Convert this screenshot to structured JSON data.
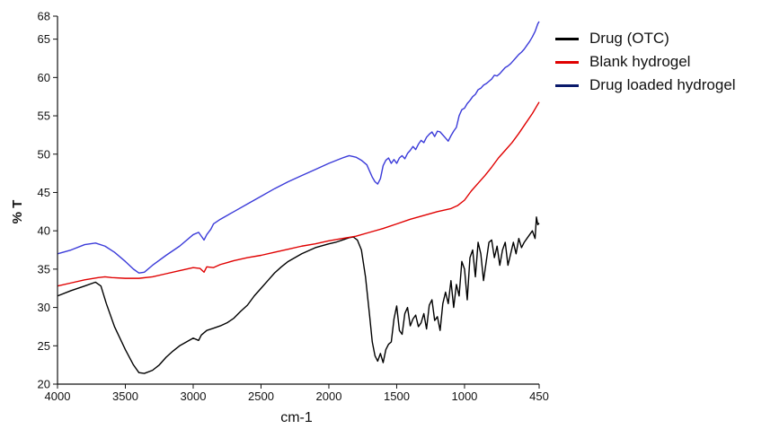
{
  "chart_data": {
    "type": "line",
    "title": "",
    "xlabel": "cm-1",
    "ylabel": "% T",
    "xlim": [
      4000,
      450
    ],
    "ylim": [
      20,
      68
    ],
    "x_reversed": true,
    "x_ticks": [
      4000,
      3500,
      3000,
      2500,
      2000,
      1500,
      1000,
      450
    ],
    "y_ticks": [
      20,
      25,
      30,
      35,
      40,
      45,
      50,
      55,
      60,
      65,
      68
    ],
    "grid": false,
    "legend_position": "top-right",
    "series": [
      {
        "name": "Drug (OTC)",
        "color": "#000000",
        "points": [
          [
            4000,
            31.5
          ],
          [
            3900,
            32.2
          ],
          [
            3800,
            32.8
          ],
          [
            3720,
            33.3
          ],
          [
            3680,
            32.8
          ],
          [
            3640,
            30.5
          ],
          [
            3580,
            27.5
          ],
          [
            3500,
            24.5
          ],
          [
            3440,
            22.5
          ],
          [
            3400,
            21.5
          ],
          [
            3360,
            21.4
          ],
          [
            3300,
            21.8
          ],
          [
            3250,
            22.5
          ],
          [
            3200,
            23.5
          ],
          [
            3150,
            24.3
          ],
          [
            3100,
            25
          ],
          [
            3050,
            25.5
          ],
          [
            3000,
            26
          ],
          [
            2960,
            25.7
          ],
          [
            2940,
            26.4
          ],
          [
            2900,
            27
          ],
          [
            2850,
            27.3
          ],
          [
            2800,
            27.6
          ],
          [
            2750,
            28
          ],
          [
            2700,
            28.6
          ],
          [
            2650,
            29.5
          ],
          [
            2600,
            30.3
          ],
          [
            2550,
            31.5
          ],
          [
            2500,
            32.5
          ],
          [
            2450,
            33.5
          ],
          [
            2400,
            34.5
          ],
          [
            2350,
            35.3
          ],
          [
            2300,
            36
          ],
          [
            2200,
            37
          ],
          [
            2100,
            37.8
          ],
          [
            2000,
            38.3
          ],
          [
            1950,
            38.5
          ],
          [
            1900,
            38.8
          ],
          [
            1850,
            39.1
          ],
          [
            1820,
            39.2
          ],
          [
            1790,
            38.8
          ],
          [
            1760,
            37.5
          ],
          [
            1730,
            34
          ],
          [
            1700,
            29
          ],
          [
            1680,
            25.5
          ],
          [
            1660,
            23.7
          ],
          [
            1640,
            23
          ],
          [
            1620,
            24
          ],
          [
            1600,
            22.8
          ],
          [
            1580,
            24.5
          ],
          [
            1560,
            25.2
          ],
          [
            1540,
            25.5
          ],
          [
            1520,
            28.5
          ],
          [
            1500,
            30.2
          ],
          [
            1480,
            27
          ],
          [
            1460,
            26.5
          ],
          [
            1440,
            29.2
          ],
          [
            1420,
            30
          ],
          [
            1400,
            27.6
          ],
          [
            1380,
            28.5
          ],
          [
            1360,
            29
          ],
          [
            1340,
            27.5
          ],
          [
            1320,
            28
          ],
          [
            1300,
            29.2
          ],
          [
            1280,
            27.2
          ],
          [
            1260,
            30.3
          ],
          [
            1240,
            31
          ],
          [
            1220,
            28.3
          ],
          [
            1200,
            28.8
          ],
          [
            1180,
            27
          ],
          [
            1160,
            30.5
          ],
          [
            1140,
            32
          ],
          [
            1120,
            30.5
          ],
          [
            1100,
            33.5
          ],
          [
            1080,
            30
          ],
          [
            1060,
            33
          ],
          [
            1040,
            31.5
          ],
          [
            1020,
            36
          ],
          [
            1000,
            35
          ],
          [
            980,
            31
          ],
          [
            960,
            36.5
          ],
          [
            940,
            37.5
          ],
          [
            920,
            34
          ],
          [
            900,
            38.5
          ],
          [
            880,
            37
          ],
          [
            860,
            33.5
          ],
          [
            840,
            36
          ],
          [
            820,
            38.5
          ],
          [
            800,
            38.8
          ],
          [
            780,
            36.5
          ],
          [
            760,
            38
          ],
          [
            740,
            35.5
          ],
          [
            720,
            37.5
          ],
          [
            700,
            38.5
          ],
          [
            680,
            35.5
          ],
          [
            660,
            37
          ],
          [
            640,
            38.5
          ],
          [
            620,
            37
          ],
          [
            600,
            39
          ],
          [
            580,
            37.8
          ],
          [
            560,
            38.5
          ],
          [
            540,
            39
          ],
          [
            520,
            39.5
          ],
          [
            500,
            40
          ],
          [
            480,
            39
          ],
          [
            470,
            41.8
          ],
          [
            460,
            40.8
          ],
          [
            450,
            41
          ]
        ]
      },
      {
        "name": "Blank hydrogel",
        "color": "#e00000",
        "points": [
          [
            4000,
            32.8
          ],
          [
            3900,
            33.2
          ],
          [
            3800,
            33.6
          ],
          [
            3700,
            33.9
          ],
          [
            3650,
            34
          ],
          [
            3600,
            33.9
          ],
          [
            3500,
            33.8
          ],
          [
            3400,
            33.8
          ],
          [
            3300,
            34
          ],
          [
            3200,
            34.4
          ],
          [
            3100,
            34.8
          ],
          [
            3000,
            35.2
          ],
          [
            2950,
            35.1
          ],
          [
            2920,
            34.6
          ],
          [
            2900,
            35.3
          ],
          [
            2850,
            35.2
          ],
          [
            2800,
            35.6
          ],
          [
            2700,
            36.1
          ],
          [
            2600,
            36.5
          ],
          [
            2500,
            36.8
          ],
          [
            2400,
            37.2
          ],
          [
            2300,
            37.6
          ],
          [
            2200,
            38
          ],
          [
            2100,
            38.3
          ],
          [
            2000,
            38.7
          ],
          [
            1900,
            39
          ],
          [
            1800,
            39.3
          ],
          [
            1700,
            39.8
          ],
          [
            1600,
            40.3
          ],
          [
            1500,
            40.9
          ],
          [
            1400,
            41.5
          ],
          [
            1300,
            42
          ],
          [
            1200,
            42.5
          ],
          [
            1100,
            42.9
          ],
          [
            1050,
            43.3
          ],
          [
            1000,
            44
          ],
          [
            950,
            45.2
          ],
          [
            900,
            46.2
          ],
          [
            850,
            47.2
          ],
          [
            800,
            48.3
          ],
          [
            750,
            49.5
          ],
          [
            700,
            50.5
          ],
          [
            650,
            51.5
          ],
          [
            600,
            52.7
          ],
          [
            550,
            54
          ],
          [
            500,
            55.3
          ],
          [
            450,
            56.8
          ]
        ]
      },
      {
        "name": "Drug loaded hydrogel",
        "color": "#3b3bd9",
        "points": [
          [
            4000,
            37
          ],
          [
            3900,
            37.5
          ],
          [
            3800,
            38.2
          ],
          [
            3720,
            38.4
          ],
          [
            3650,
            38
          ],
          [
            3580,
            37.2
          ],
          [
            3500,
            36
          ],
          [
            3440,
            35
          ],
          [
            3400,
            34.5
          ],
          [
            3360,
            34.6
          ],
          [
            3300,
            35.5
          ],
          [
            3200,
            36.8
          ],
          [
            3100,
            38
          ],
          [
            3000,
            39.5
          ],
          [
            2960,
            39.8
          ],
          [
            2940,
            39.3
          ],
          [
            2920,
            38.8
          ],
          [
            2900,
            39.5
          ],
          [
            2870,
            40.2
          ],
          [
            2850,
            40.9
          ],
          [
            2800,
            41.5
          ],
          [
            2700,
            42.5
          ],
          [
            2600,
            43.5
          ],
          [
            2500,
            44.5
          ],
          [
            2400,
            45.5
          ],
          [
            2300,
            46.4
          ],
          [
            2200,
            47.2
          ],
          [
            2100,
            48
          ],
          [
            2000,
            48.8
          ],
          [
            1900,
            49.5
          ],
          [
            1850,
            49.8
          ],
          [
            1800,
            49.6
          ],
          [
            1760,
            49.2
          ],
          [
            1720,
            48.6
          ],
          [
            1700,
            47.8
          ],
          [
            1680,
            47
          ],
          [
            1660,
            46.4
          ],
          [
            1640,
            46.1
          ],
          [
            1620,
            46.8
          ],
          [
            1600,
            48.5
          ],
          [
            1580,
            49.2
          ],
          [
            1560,
            49.5
          ],
          [
            1540,
            48.8
          ],
          [
            1520,
            49.3
          ],
          [
            1500,
            48.8
          ],
          [
            1480,
            49.5
          ],
          [
            1460,
            49.8
          ],
          [
            1440,
            49.4
          ],
          [
            1420,
            50.1
          ],
          [
            1400,
            50.5
          ],
          [
            1380,
            51
          ],
          [
            1360,
            50.6
          ],
          [
            1340,
            51.3
          ],
          [
            1320,
            51.8
          ],
          [
            1300,
            51.5
          ],
          [
            1280,
            52.2
          ],
          [
            1260,
            52.6
          ],
          [
            1240,
            52.9
          ],
          [
            1220,
            52.3
          ],
          [
            1200,
            53
          ],
          [
            1180,
            52.9
          ],
          [
            1160,
            52.5
          ],
          [
            1140,
            52.1
          ],
          [
            1120,
            51.7
          ],
          [
            1100,
            52.4
          ],
          [
            1080,
            53
          ],
          [
            1060,
            53.5
          ],
          [
            1040,
            55
          ],
          [
            1020,
            55.8
          ],
          [
            1000,
            56
          ],
          [
            980,
            56.6
          ],
          [
            960,
            57
          ],
          [
            940,
            57.5
          ],
          [
            920,
            57.8
          ],
          [
            900,
            58.4
          ],
          [
            880,
            58.6
          ],
          [
            860,
            59
          ],
          [
            840,
            59.2
          ],
          [
            820,
            59.5
          ],
          [
            800,
            59.8
          ],
          [
            780,
            60.3
          ],
          [
            760,
            60.2
          ],
          [
            740,
            60.5
          ],
          [
            720,
            60.9
          ],
          [
            700,
            61.3
          ],
          [
            680,
            61.5
          ],
          [
            660,
            61.8
          ],
          [
            640,
            62.2
          ],
          [
            620,
            62.6
          ],
          [
            600,
            63
          ],
          [
            580,
            63.3
          ],
          [
            560,
            63.7
          ],
          [
            540,
            64.2
          ],
          [
            520,
            64.7
          ],
          [
            500,
            65.3
          ],
          [
            480,
            66
          ],
          [
            460,
            67
          ],
          [
            450,
            67.3
          ]
        ]
      }
    ]
  },
  "legend": {
    "items": [
      {
        "label": "Drug (OTC)",
        "swatch_color": "#000000"
      },
      {
        "label": "Blank hydrogel",
        "swatch_color": "#e00000"
      },
      {
        "label": "Drug loaded hydrogel",
        "swatch_color": "#0a1a6b"
      }
    ]
  }
}
